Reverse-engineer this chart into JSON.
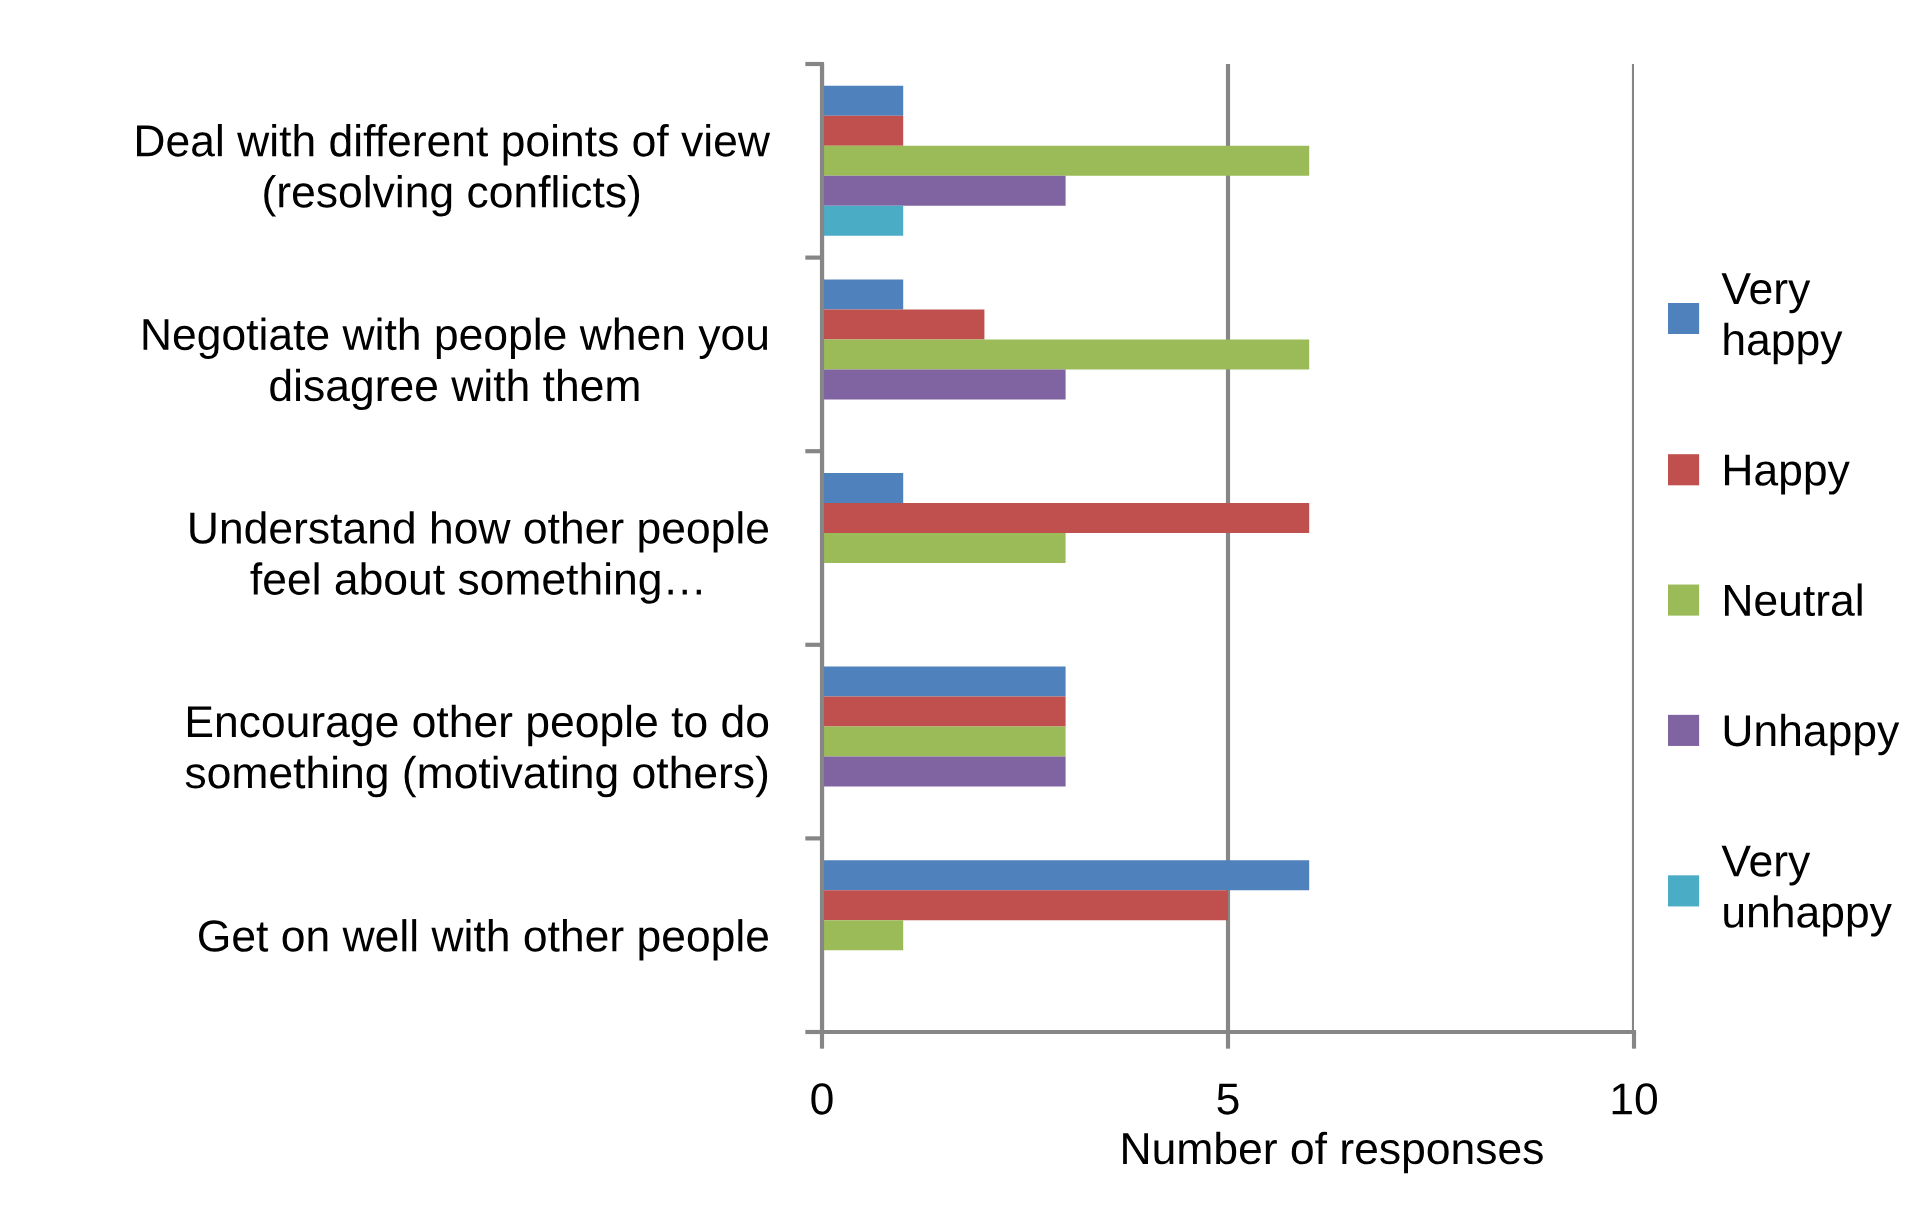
{
  "chart_data": {
    "type": "bar",
    "orientation": "horizontal",
    "categories": [
      "Deal with different points of view\n(resolving conflicts)",
      "Negotiate with people when you\ndisagree with them",
      "Understand how other people\nfeel about something…",
      "Encourage other people to do\nsomething (motivating others)",
      "Get on well with other people"
    ],
    "series": [
      {
        "name": "Very\nhappy",
        "color": "#4f81bd",
        "values": [
          1,
          1,
          1,
          3,
          6
        ]
      },
      {
        "name": "Happy",
        "color": "#c0504d",
        "values": [
          1,
          2,
          6,
          3,
          5
        ]
      },
      {
        "name": "Neutral",
        "color": "#9bbb59",
        "values": [
          6,
          6,
          3,
          3,
          1
        ]
      },
      {
        "name": "Unhappy",
        "color": "#8064a2",
        "values": [
          3,
          3,
          0,
          3,
          0
        ]
      },
      {
        "name": "Very\nunhappy",
        "color": "#4bacc6",
        "values": [
          1,
          0,
          0,
          0,
          0
        ]
      }
    ],
    "xlabel": "Number of responses",
    "xlim": [
      0,
      10
    ],
    "xticks": [
      0,
      5,
      10
    ],
    "grid": "x",
    "legend": "right"
  }
}
